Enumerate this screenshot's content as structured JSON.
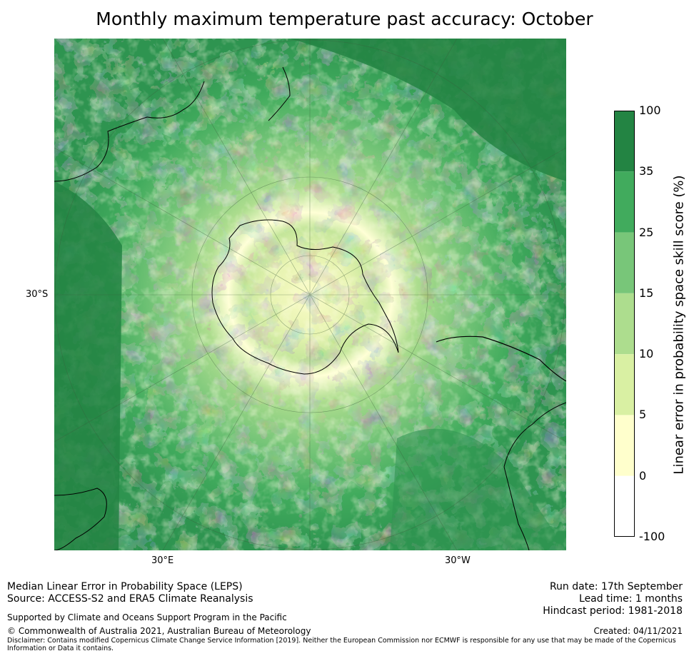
{
  "title": "Monthly maximum temperature past accuracy: October",
  "map": {
    "projection": "south polar stereographic",
    "labels": {
      "lat_left": "30°S",
      "lon_left": "30°E",
      "lon_right": "30°W"
    }
  },
  "colorbar": {
    "label": "Linear error in probability space skill score (%)",
    "ticks": [
      "100",
      "35",
      "25",
      "15",
      "10",
      "5",
      "0",
      "-100"
    ],
    "bands": [
      {
        "range": "35-100",
        "color": "#238443"
      },
      {
        "range": "25-35",
        "color": "#41ab5d"
      },
      {
        "range": "15-25",
        "color": "#78c679"
      },
      {
        "range": "10-15",
        "color": "#addd8e"
      },
      {
        "range": "5-10",
        "color": "#d9f0a3"
      },
      {
        "range": "0-5",
        "color": "#ffffcc"
      },
      {
        "range": "-100-0",
        "color": "#ffffff"
      }
    ]
  },
  "footer": {
    "line1": "Median Linear Error in Probability Space (LEPS)",
    "line2": "Source: ACCESS-S2 and ERA5 Climate Reanalysis",
    "support": "Supported by Climate and Oceans Support Program in the Pacific",
    "copyright": "© Commonwealth of Australia 2021, Australian Bureau of Meteorology",
    "disclaimer1": "Disclaimer: Contains modified Copernicus Climate Change Service Information [2019]. Neither the European Commission nor ECMWF is responsible for any use that may be made of the Copernicus",
    "disclaimer2": "Information or Data it contains.",
    "run_date": "Run date: 17th September",
    "lead_time": "Lead time: 1 months",
    "hindcast": "Hindcast period: 1981-2018",
    "created": "Created: 04/11/2021"
  }
}
